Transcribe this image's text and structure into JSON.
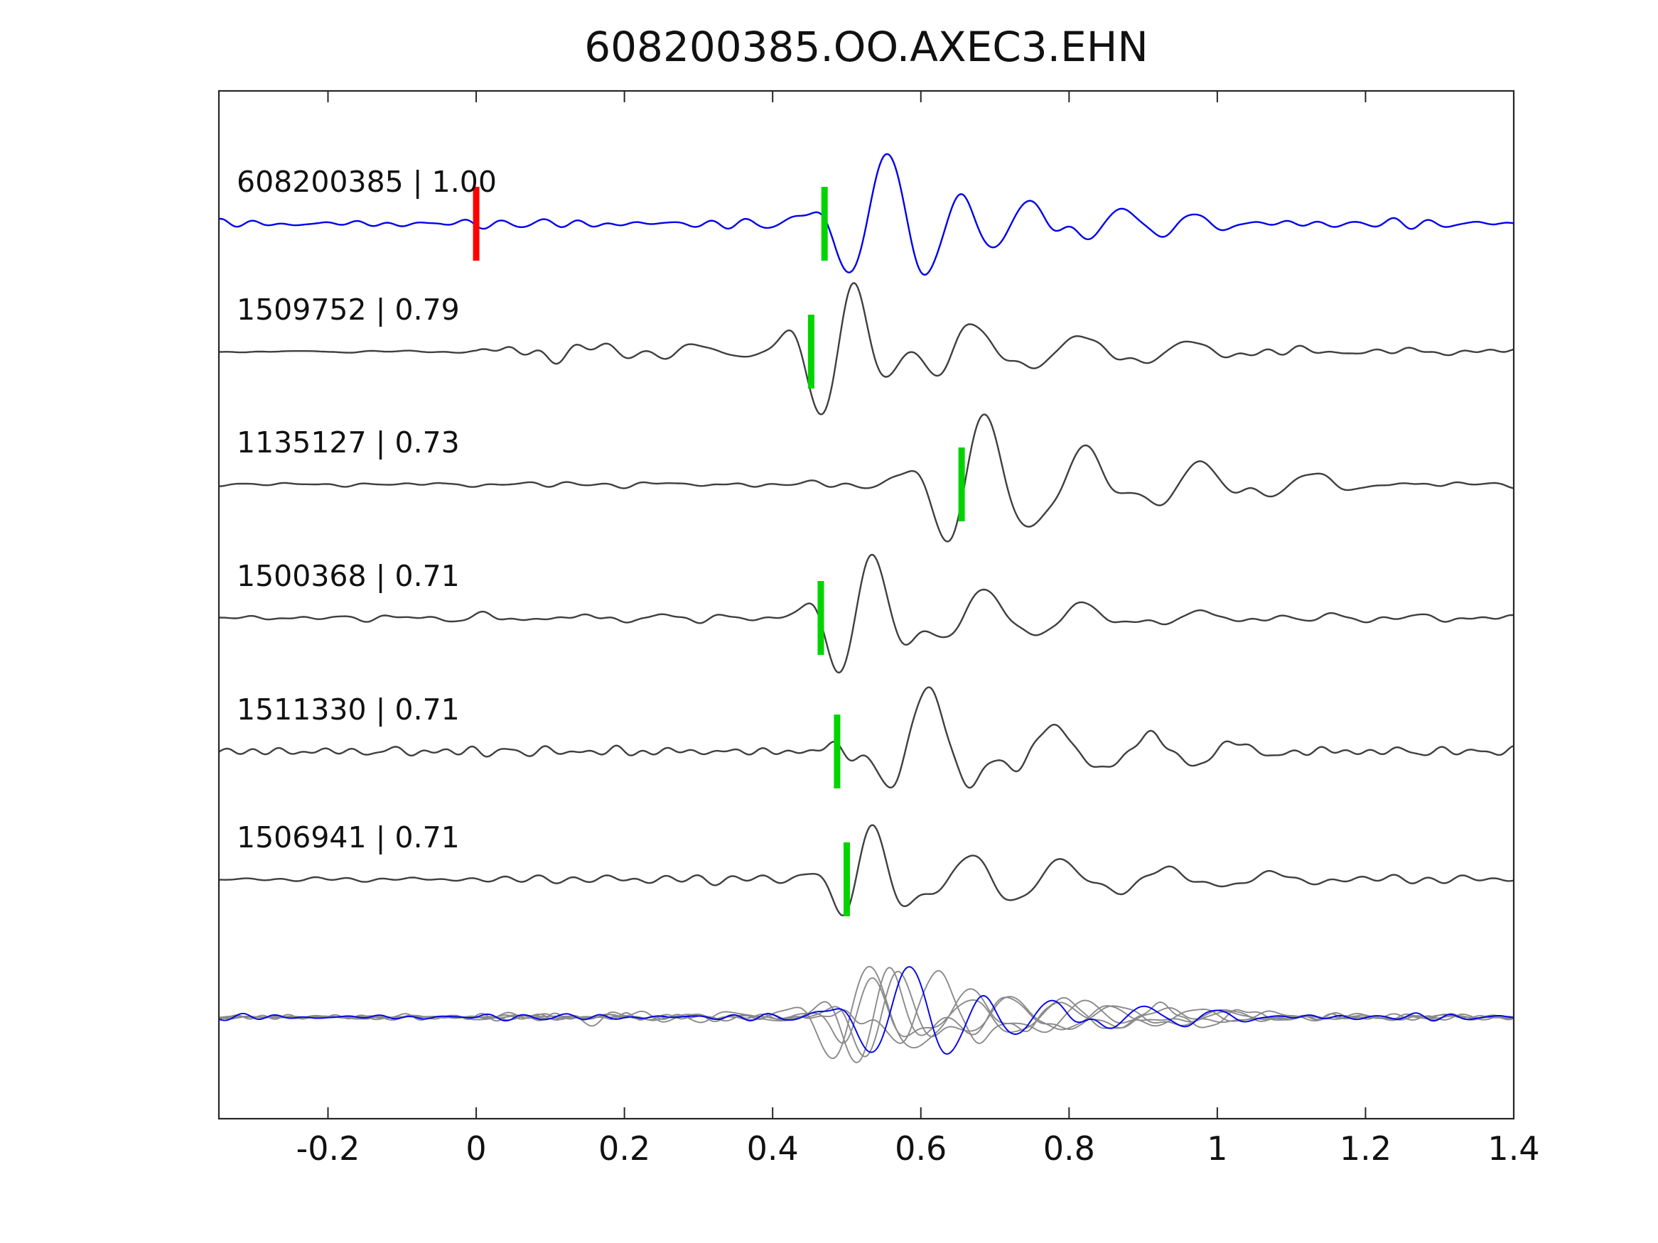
{
  "chart_data": {
    "type": "line",
    "title": "608200385.OO.AXEC3.EHN",
    "xlabel": "",
    "ylabel": "",
    "xlim": [
      -0.3472,
      1.4
    ],
    "x_ticks": [
      -0.2,
      0,
      0.2,
      0.4,
      0.6,
      0.8,
      1,
      1.2,
      1.4
    ],
    "x_tick_labels": [
      "-0.2",
      "0",
      "0.2",
      "0.4",
      "0.6",
      "0.8",
      "1",
      "1.2",
      "1.4"
    ],
    "grid": false,
    "legend": null,
    "colors": {
      "reference_trace": "#0000ee",
      "match_trace": "#3f3f3f",
      "overlay_gray": "#8a8a8a",
      "pick_marker": "#00d400",
      "reference_marker": "#ff0000",
      "box": "#262626",
      "text": "#111111"
    },
    "reference_pick_time": 0.0,
    "overlay_align_time": 0.5,
    "traces": [
      {
        "id": "608200385",
        "correlation": "1.00",
        "label": "608200385 | 1.00",
        "color_role": "reference",
        "pick_time": 0.47,
        "seed": 11,
        "noise_envelope": [
          [
            -0.3472,
            0.05
          ],
          [
            0.4,
            0.05
          ],
          [
            0.5,
            0.035
          ],
          [
            0.95,
            0.045
          ],
          [
            1.4,
            0.05
          ]
        ],
        "packets": [
          [
            0.555,
            0.92,
            9,
            0.06,
            90
          ],
          [
            0.72,
            0.35,
            10,
            0.06,
            0
          ],
          [
            0.85,
            0.22,
            11,
            0.05,
            0
          ],
          [
            0.95,
            0.12,
            12,
            0.05,
            0
          ]
        ]
      },
      {
        "id": "1509752",
        "correlation": "0.79",
        "label": "1509752 | 0.79",
        "color_role": "match",
        "pick_time": 0.452,
        "seed": 23,
        "noise_envelope": [
          [
            -0.3472,
            0.012
          ],
          [
            0.0,
            0.015
          ],
          [
            0.05,
            0.13
          ],
          [
            0.33,
            0.11
          ],
          [
            0.44,
            0.05
          ],
          [
            1.4,
            0.05
          ]
        ],
        "packets": [
          [
            0.465,
            -0.3,
            10,
            0.03,
            90
          ],
          [
            0.505,
            0.8,
            10,
            0.05,
            70
          ],
          [
            0.64,
            0.4,
            9,
            0.05,
            0
          ],
          [
            0.78,
            0.22,
            8,
            0.06,
            0
          ],
          [
            0.93,
            0.13,
            8,
            0.06,
            0
          ]
        ]
      },
      {
        "id": "1135127",
        "correlation": "0.73",
        "label": "1135127 | 0.73",
        "color_role": "match",
        "pick_time": 0.655,
        "seed": 37,
        "noise_envelope": [
          [
            -0.3472,
            0.025
          ],
          [
            0.3,
            0.035
          ],
          [
            0.55,
            0.04
          ],
          [
            1.4,
            0.035
          ]
        ],
        "packets": [
          [
            0.64,
            -0.2,
            8,
            0.035,
            90
          ],
          [
            0.685,
            0.88,
            9,
            0.055,
            90
          ],
          [
            0.81,
            0.55,
            9,
            0.055,
            45
          ],
          [
            0.95,
            0.33,
            9,
            0.06,
            0
          ],
          [
            1.1,
            0.18,
            9,
            0.06,
            0
          ]
        ]
      },
      {
        "id": "1500368",
        "correlation": "0.71",
        "label": "1500368 | 0.71",
        "color_role": "match",
        "pick_time": 0.465,
        "seed": 51,
        "noise_envelope": [
          [
            -0.3472,
            0.03
          ],
          [
            0.1,
            0.06
          ],
          [
            0.4,
            0.055
          ],
          [
            0.46,
            0.04
          ],
          [
            1.4,
            0.05
          ]
        ],
        "packets": [
          [
            0.49,
            -0.2,
            10,
            0.03,
            90
          ],
          [
            0.535,
            0.8,
            10,
            0.05,
            90
          ],
          [
            0.655,
            0.42,
            9,
            0.05,
            0
          ],
          [
            0.79,
            0.22,
            9,
            0.06,
            0
          ],
          [
            0.95,
            0.13,
            9,
            0.06,
            0
          ]
        ]
      },
      {
        "id": "1511330",
        "correlation": "0.71",
        "label": "1511330 | 0.71",
        "color_role": "match",
        "pick_time": 0.487,
        "seed": 67,
        "noise_envelope": [
          [
            -0.3472,
            0.05
          ],
          [
            0.3,
            0.06
          ],
          [
            0.45,
            0.05
          ],
          [
            1.4,
            0.05
          ]
        ],
        "packets": [
          [
            0.52,
            0.2,
            12,
            0.03,
            0
          ],
          [
            0.61,
            0.85,
            8,
            0.06,
            90
          ],
          [
            0.75,
            0.38,
            9,
            0.05,
            0
          ],
          [
            0.88,
            0.22,
            9,
            0.06,
            0
          ],
          [
            1.0,
            0.12,
            9,
            0.06,
            0
          ]
        ]
      },
      {
        "id": "1506941",
        "correlation": "0.71",
        "label": "1506941 | 0.71",
        "color_role": "match",
        "pick_time": 0.5,
        "seed": 83,
        "noise_envelope": [
          [
            -0.3472,
            0.02
          ],
          [
            0.15,
            0.04
          ],
          [
            0.22,
            0.08
          ],
          [
            0.3,
            0.07
          ],
          [
            0.45,
            0.05
          ],
          [
            1.4,
            0.04
          ]
        ],
        "packets": [
          [
            0.535,
            0.72,
            11,
            0.045,
            90
          ],
          [
            0.64,
            0.3,
            10,
            0.05,
            0
          ],
          [
            0.76,
            0.28,
            9,
            0.06,
            0
          ],
          [
            0.9,
            0.18,
            9,
            0.07,
            0
          ],
          [
            1.05,
            0.1,
            9,
            0.07,
            0
          ]
        ]
      }
    ]
  }
}
